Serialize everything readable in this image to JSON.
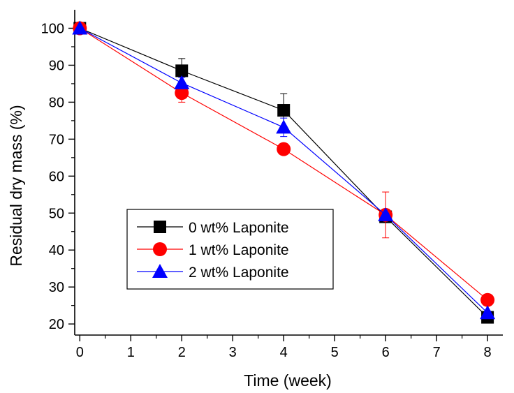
{
  "chart_data": {
    "type": "line",
    "xlabel": "Time (week)",
    "ylabel": "Residual dry mass (%)",
    "xlim": [
      -0.1,
      8.3
    ],
    "ylim": [
      17,
      105
    ],
    "xticks": [
      0,
      1,
      2,
      3,
      4,
      5,
      6,
      7,
      8
    ],
    "yticks": [
      20,
      30,
      40,
      50,
      60,
      70,
      80,
      90,
      100
    ],
    "legend_position": "lower-left",
    "grid": false,
    "series": [
      {
        "name": "0 wt% Laponite",
        "color": "#000000",
        "marker": "square",
        "x": [
          0,
          2,
          4,
          6,
          8
        ],
        "y": [
          100,
          88.5,
          77.8,
          49,
          21.8
        ],
        "err": [
          0,
          3.3,
          4.5,
          0.8,
          0.5
        ]
      },
      {
        "name": "1 wt% Laponite",
        "color": "#ff0000",
        "marker": "circle",
        "x": [
          0,
          2,
          4,
          6,
          8
        ],
        "y": [
          100,
          82.5,
          67.3,
          49.5,
          26.5
        ],
        "err": [
          0,
          2.5,
          0.8,
          6.2,
          0.5
        ]
      },
      {
        "name": "2 wt% Laponite",
        "color": "#0000ff",
        "marker": "triangle",
        "x": [
          0,
          2,
          4,
          6,
          8
        ],
        "y": [
          100,
          85.2,
          73.2,
          49.5,
          23
        ],
        "err": [
          0,
          1.5,
          2.5,
          0.5,
          0.5
        ]
      }
    ]
  }
}
